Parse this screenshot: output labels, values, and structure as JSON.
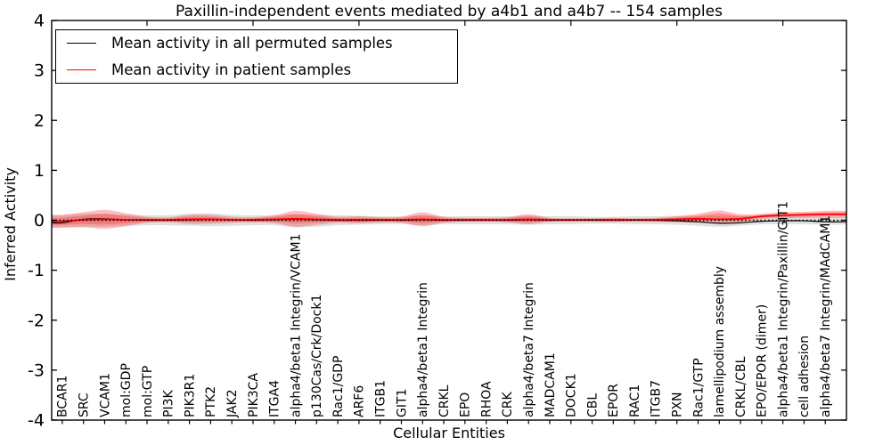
{
  "title": "Paxillin-independent events mediated by a4b1 and a4b7 -- 154 samples",
  "axes": {
    "xlabel": "Cellular Entities",
    "ylabel": "Inferred Activity"
  },
  "legend": {
    "items": [
      {
        "label": "Mean activity in all permuted samples",
        "color": "#000000"
      },
      {
        "label": "Mean activity in patient samples",
        "color": "#ff0000"
      }
    ]
  },
  "chart_data": {
    "type": "line",
    "title": "Paxillin-independent events mediated by a4b1 and a4b7 -- 154 samples",
    "xlabel": "Cellular Entities",
    "ylabel": "Inferred Activity",
    "ylim": [
      -4,
      4
    ],
    "yticks": [
      -4,
      -3,
      -2,
      -1,
      0,
      1,
      2,
      3,
      4
    ],
    "ytick_labels": [
      "-4",
      "-3",
      "-2",
      "-1",
      "0",
      "1",
      "2",
      "3",
      "4"
    ],
    "grid": false,
    "legend_position": "upper left",
    "zero_line": {
      "style": "dotted",
      "color": "#000000",
      "y": 0
    },
    "categories": [
      "BCAR1",
      "SRC",
      "VCAM1",
      "mol:GDP",
      "mol:GTP",
      "PI3K",
      "PIK3R1",
      "PTK2",
      "JAK2",
      "PIK3CA",
      "ITGA4",
      "alpha4/beta1 Integrin/VCAM1",
      "p130Cas/Crk/Dock1",
      "Rac1/GDP",
      "ARF6",
      "ITGB1",
      "GIT1",
      "alpha4/beta1 Integrin",
      "CRKL",
      "EPO",
      "RHOA",
      "CRK",
      "alpha4/beta7 Integrin",
      "MADCAM1",
      "DOCK1",
      "CBL",
      "EPOR",
      "RAC1",
      "ITGB7",
      "PXN",
      "Rac1/GTP",
      "lamellipodium assembly",
      "CRKL/CBL",
      "EPO/EPOR (dimer)",
      "alpha4/beta1 Integrin/Paxillin/GIT1",
      "cell adhesion",
      "alpha4/beta7 Integrin/MAdCAM1"
    ],
    "series": [
      {
        "name": "Mean activity in all permuted samples",
        "color": "#000000",
        "values": [
          -0.05,
          0.02,
          0.03,
          0.01,
          0.0,
          0.0,
          0.01,
          0.02,
          0.01,
          0.0,
          0.01,
          0.02,
          0.01,
          0.0,
          0.0,
          0.0,
          0.0,
          0.01,
          0.0,
          0.0,
          0.0,
          0.0,
          0.01,
          0.0,
          0.0,
          0.0,
          0.0,
          0.0,
          0.0,
          -0.01,
          -0.03,
          -0.06,
          -0.05,
          -0.02,
          -0.01,
          -0.01,
          -0.03
        ]
      },
      {
        "name": "Mean activity in patient samples",
        "color": "#ff0000",
        "values": [
          -0.02,
          0.01,
          0.02,
          0.01,
          0.01,
          0.01,
          0.02,
          0.02,
          0.01,
          0.01,
          0.02,
          0.03,
          0.02,
          0.01,
          0.01,
          0.01,
          0.01,
          0.02,
          0.01,
          0.01,
          0.01,
          0.01,
          0.02,
          0.01,
          0.01,
          0.01,
          0.01,
          0.01,
          0.01,
          0.02,
          0.03,
          0.02,
          0.03,
          0.08,
          0.1,
          0.11,
          0.12
        ]
      }
    ],
    "bands": [
      {
        "name": "permuted-samples-spread",
        "color": "rgba(0,0,0,0.12)",
        "center": [
          -0.02,
          0.0,
          0.0,
          0.0,
          0.0,
          0.0,
          0.01,
          0.01,
          0.0,
          0.0,
          0.0,
          -0.01,
          -0.01,
          0.0,
          0.0,
          0.0,
          0.0,
          0.0,
          0.0,
          0.0,
          0.0,
          0.0,
          0.0,
          0.0,
          0.0,
          0.0,
          0.0,
          0.0,
          0.0,
          0.0,
          -0.01,
          -0.02,
          -0.01,
          0.0,
          0.0,
          0.0,
          -0.01
        ],
        "halfwidth": [
          0.12,
          0.13,
          0.13,
          0.11,
          0.1,
          0.1,
          0.12,
          0.13,
          0.11,
          0.1,
          0.1,
          0.13,
          0.12,
          0.1,
          0.09,
          0.08,
          0.08,
          0.1,
          0.08,
          0.08,
          0.08,
          0.08,
          0.09,
          0.08,
          0.08,
          0.07,
          0.07,
          0.08,
          0.08,
          0.09,
          0.1,
          0.11,
          0.1,
          0.08,
          0.08,
          0.08,
          0.08
        ]
      },
      {
        "name": "patient-samples-spread",
        "color": "rgba(255,0,0,0.26)",
        "center": [
          -0.02,
          0.01,
          0.02,
          0.01,
          0.01,
          0.01,
          0.02,
          0.02,
          0.01,
          0.01,
          0.02,
          0.03,
          0.02,
          0.01,
          0.01,
          0.01,
          0.01,
          0.02,
          0.01,
          0.01,
          0.01,
          0.01,
          0.02,
          0.01,
          0.01,
          0.01,
          0.01,
          0.01,
          0.01,
          0.02,
          0.04,
          0.07,
          0.04,
          0.08,
          0.1,
          0.11,
          0.12
        ],
        "halfwidth": [
          0.13,
          0.15,
          0.19,
          0.13,
          0.06,
          0.05,
          0.09,
          0.09,
          0.06,
          0.05,
          0.08,
          0.16,
          0.11,
          0.06,
          0.07,
          0.05,
          0.06,
          0.14,
          0.06,
          0.04,
          0.04,
          0.05,
          0.1,
          0.04,
          0.03,
          0.03,
          0.04,
          0.03,
          0.04,
          0.06,
          0.09,
          0.125,
          0.08,
          0.05,
          0.06,
          0.06,
          0.07
        ]
      }
    ]
  }
}
